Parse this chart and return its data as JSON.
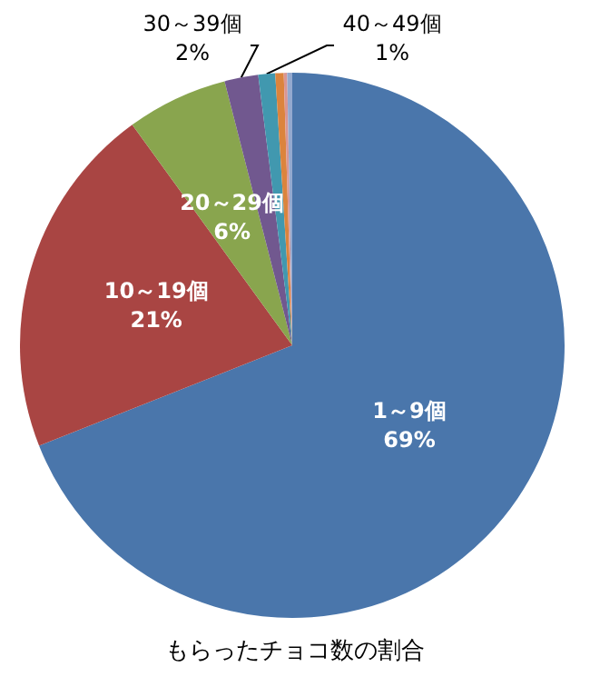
{
  "chart_data": {
    "type": "pie",
    "title": "もらったチョコ数の割合",
    "categories": [
      "1～9個",
      "10～19個",
      "20～29個",
      "30～39個",
      "40～49個",
      null,
      null,
      null
    ],
    "values": [
      69,
      21,
      6,
      2,
      1,
      0.5,
      0.2,
      0.3
    ],
    "value_labels": [
      "69%",
      "21%",
      "6%",
      "2%",
      "1%",
      null,
      null,
      null
    ],
    "colors": [
      "#4a76ab",
      "#a94543",
      "#89a54e",
      "#71588f",
      "#4198af",
      "#db843d",
      "#d99694",
      "#93a9cf"
    ],
    "legend": false
  }
}
